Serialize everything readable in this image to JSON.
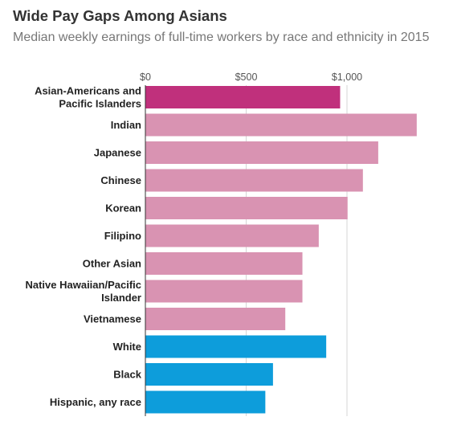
{
  "chart_data": {
    "type": "bar",
    "orientation": "horizontal",
    "title": "Wide Pay Gaps Among Asians",
    "subtitle": "Median weekly earnings of full-time workers by race and ethnicity in 2015",
    "xlim": [
      0,
      1350
    ],
    "x_ticks": [
      0,
      500,
      1000
    ],
    "x_tick_labels": [
      "$0",
      "$500",
      "$1,000"
    ],
    "grid": "vertical",
    "categories": [
      [
        "Asian-Americans and",
        "Pacific Islanders"
      ],
      [
        "Indian"
      ],
      [
        "Japanese"
      ],
      [
        "Chinese"
      ],
      [
        "Korean"
      ],
      [
        "Filipino"
      ],
      [
        "Other Asian"
      ],
      [
        "Native Hawaiian/Pacific",
        "Islander"
      ],
      [
        "Vietnamese"
      ],
      [
        "White"
      ],
      [
        "Black"
      ],
      [
        "Hispanic, any race"
      ]
    ],
    "values": [
      966,
      1346,
      1155,
      1079,
      1003,
      860,
      779,
      779,
      694,
      897,
      633,
      595
    ],
    "colors": [
      "#c0307c",
      "#d993b2",
      "#d993b2",
      "#d993b2",
      "#d993b2",
      "#d993b2",
      "#d993b2",
      "#d993b2",
      "#d993b2",
      "#0d9ddb",
      "#0d9ddb",
      "#0d9ddb"
    ]
  }
}
